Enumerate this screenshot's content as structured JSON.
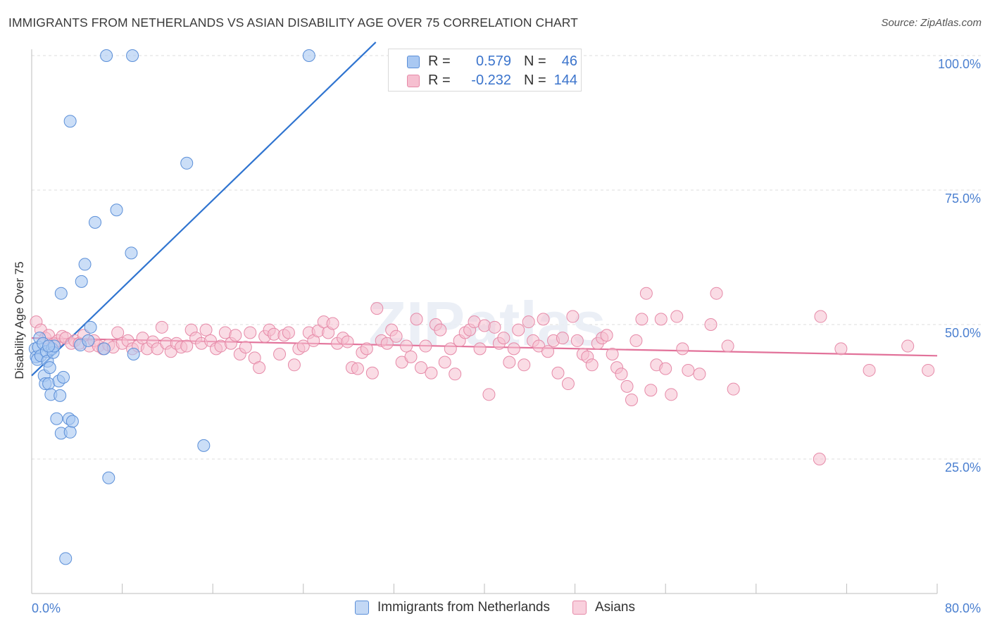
{
  "title": "IMMIGRANTS FROM NETHERLANDS VS ASIAN DISABILITY AGE OVER 75 CORRELATION CHART",
  "source": "Source: ZipAtlas.com",
  "colors": {
    "blue_fill": "#a9c8f2",
    "blue_stroke": "#5b8fd8",
    "blue_line": "#2f74d0",
    "pink_fill": "#f6bfd0",
    "pink_stroke": "#e68aa8",
    "pink_line": "#e2729a",
    "grid": "#dcdcdc",
    "tick_text": "#4a7fd0"
  },
  "legend_top": {
    "rows": [
      {
        "r_label": "R =",
        "r_value": "0.579",
        "n_label": "N =",
        "n_value": "46"
      },
      {
        "r_label": "R =",
        "r_value": "-0.232",
        "n_label": "N =",
        "n_value": "144"
      }
    ]
  },
  "chart_data": {
    "type": "scatter",
    "title": "IMMIGRANTS FROM NETHERLANDS VS ASIAN DISABILITY AGE OVER 75 CORRELATION CHART",
    "xlabel": "",
    "ylabel": "Disability Age Over 75",
    "xlim": [
      0,
      80
    ],
    "ylim": [
      0,
      105
    ],
    "x_ticks": [
      {
        "value": 0,
        "label": "0.0%"
      },
      {
        "value": 80,
        "label": "80.0%"
      }
    ],
    "y_ticks": [
      {
        "value": 25,
        "label": "25.0%"
      },
      {
        "value": 50,
        "label": "50.0%"
      },
      {
        "value": 75,
        "label": "75.0%"
      },
      {
        "value": 100,
        "label": "100.0%"
      }
    ],
    "watermark": "ZIPatlas",
    "legend_position": "top-center",
    "series": [
      {
        "name": "Immigrants from Netherlands",
        "R": 0.579,
        "N": 46,
        "trend": {
          "x0": 0.0,
          "y0": 40.5,
          "x1": 30.4,
          "y1": 102.5
        },
        "points": [
          [
            0.3,
            45.5
          ],
          [
            0.4,
            44.0
          ],
          [
            0.5,
            43.5
          ],
          [
            0.6,
            45.8
          ],
          [
            0.7,
            47.5
          ],
          [
            0.8,
            44.2
          ],
          [
            1.0,
            46.5
          ],
          [
            1.1,
            40.5
          ],
          [
            1.2,
            39.0
          ],
          [
            1.3,
            45.0
          ],
          [
            1.4,
            43.2
          ],
          [
            1.5,
            39.0
          ],
          [
            1.6,
            42.0
          ],
          [
            1.7,
            37.0
          ],
          [
            1.8,
            45.5
          ],
          [
            1.9,
            44.8
          ],
          [
            2.0,
            46.0
          ],
          [
            2.2,
            32.5
          ],
          [
            2.4,
            39.5
          ],
          [
            2.5,
            36.8
          ],
          [
            2.6,
            29.8
          ],
          [
            2.8,
            40.2
          ],
          [
            3.0,
            6.5
          ],
          [
            3.3,
            32.5
          ],
          [
            3.4,
            30.0
          ],
          [
            3.6,
            32.0
          ],
          [
            2.6,
            55.8
          ],
          [
            3.4,
            87.8
          ],
          [
            4.4,
            58.0
          ],
          [
            4.7,
            61.2
          ],
          [
            5.2,
            49.5
          ],
          [
            5.6,
            69.0
          ],
          [
            6.8,
            21.5
          ],
          [
            7.5,
            71.3
          ],
          [
            8.8,
            63.3
          ],
          [
            9.0,
            44.5
          ],
          [
            6.6,
            100.0
          ],
          [
            8.9,
            100.0
          ],
          [
            13.7,
            80.0
          ],
          [
            15.2,
            27.5
          ],
          [
            24.5,
            100.0
          ],
          [
            33.0,
            100.0
          ],
          [
            4.3,
            46.2
          ],
          [
            5.0,
            47.0
          ],
          [
            6.4,
            45.5
          ],
          [
            1.5,
            46.0
          ]
        ]
      },
      {
        "name": "Asians",
        "R": -0.232,
        "N": 144,
        "trend": {
          "x0": 0.0,
          "y0": 47.5,
          "x1": 80.0,
          "y1": 44.2
        },
        "points": [
          [
            0.4,
            50.5
          ],
          [
            0.8,
            49.0
          ],
          [
            1.2,
            47.5
          ],
          [
            1.5,
            48.0
          ],
          [
            2.0,
            46.5
          ],
          [
            2.3,
            47.0
          ],
          [
            2.7,
            47.8
          ],
          [
            3.0,
            47.5
          ],
          [
            3.5,
            46.5
          ],
          [
            3.8,
            47.0
          ],
          [
            4.2,
            46.5
          ],
          [
            4.6,
            48.0
          ],
          [
            5.1,
            46.0
          ],
          [
            5.5,
            47.0
          ],
          [
            5.9,
            46.0
          ],
          [
            6.3,
            45.5
          ],
          [
            6.8,
            46.2
          ],
          [
            7.2,
            45.8
          ],
          [
            7.6,
            48.5
          ],
          [
            8.0,
            46.5
          ],
          [
            8.5,
            47.0
          ],
          [
            8.9,
            45.5
          ],
          [
            9.4,
            46.0
          ],
          [
            9.8,
            47.5
          ],
          [
            10.2,
            45.5
          ],
          [
            10.7,
            46.8
          ],
          [
            11.1,
            45.5
          ],
          [
            11.5,
            49.5
          ],
          [
            11.9,
            46.5
          ],
          [
            12.3,
            45.0
          ],
          [
            12.8,
            46.5
          ],
          [
            13.2,
            45.8
          ],
          [
            13.7,
            46.0
          ],
          [
            14.1,
            49.0
          ],
          [
            14.5,
            47.5
          ],
          [
            15.0,
            46.5
          ],
          [
            15.4,
            49.0
          ],
          [
            15.8,
            47.0
          ],
          [
            16.3,
            45.5
          ],
          [
            16.7,
            46.0
          ],
          [
            17.1,
            48.5
          ],
          [
            17.6,
            46.5
          ],
          [
            18.0,
            48.0
          ],
          [
            18.4,
            44.5
          ],
          [
            18.9,
            45.8
          ],
          [
            19.3,
            48.5
          ],
          [
            19.7,
            43.8
          ],
          [
            20.1,
            42.0
          ],
          [
            20.6,
            47.8
          ],
          [
            21.0,
            49.0
          ],
          [
            21.4,
            48.2
          ],
          [
            21.9,
            44.5
          ],
          [
            22.3,
            48.0
          ],
          [
            22.7,
            48.5
          ],
          [
            23.2,
            42.5
          ],
          [
            23.6,
            45.5
          ],
          [
            24.0,
            46.0
          ],
          [
            24.5,
            48.5
          ],
          [
            24.9,
            47.0
          ],
          [
            25.3,
            48.8
          ],
          [
            25.8,
            50.5
          ],
          [
            26.2,
            48.5
          ],
          [
            26.6,
            50.2
          ],
          [
            27.0,
            46.5
          ],
          [
            27.5,
            47.5
          ],
          [
            27.9,
            46.8
          ],
          [
            28.3,
            42.0
          ],
          [
            28.8,
            41.8
          ],
          [
            29.2,
            44.8
          ],
          [
            29.6,
            45.5
          ],
          [
            30.1,
            41.0
          ],
          [
            30.5,
            53.0
          ],
          [
            30.9,
            47.0
          ],
          [
            31.4,
            46.5
          ],
          [
            31.8,
            49.0
          ],
          [
            32.2,
            47.8
          ],
          [
            32.7,
            43.0
          ],
          [
            33.1,
            46.0
          ],
          [
            33.5,
            44.0
          ],
          [
            34.0,
            51.0
          ],
          [
            34.4,
            42.0
          ],
          [
            34.8,
            46.0
          ],
          [
            35.3,
            41.0
          ],
          [
            35.7,
            50.0
          ],
          [
            36.1,
            49.0
          ],
          [
            36.5,
            43.0
          ],
          [
            37.0,
            45.5
          ],
          [
            37.4,
            40.8
          ],
          [
            37.8,
            47.0
          ],
          [
            38.3,
            48.5
          ],
          [
            38.7,
            49.0
          ],
          [
            39.1,
            50.5
          ],
          [
            39.6,
            45.5
          ],
          [
            40.0,
            49.8
          ],
          [
            40.4,
            37.0
          ],
          [
            40.9,
            49.5
          ],
          [
            41.3,
            46.5
          ],
          [
            41.7,
            47.5
          ],
          [
            42.2,
            43.0
          ],
          [
            42.6,
            45.5
          ],
          [
            43.0,
            49.0
          ],
          [
            43.5,
            42.5
          ],
          [
            43.9,
            50.5
          ],
          [
            44.3,
            47.0
          ],
          [
            44.8,
            46.0
          ],
          [
            45.2,
            51.0
          ],
          [
            45.6,
            45.0
          ],
          [
            46.1,
            47.0
          ],
          [
            46.5,
            41.0
          ],
          [
            46.9,
            47.5
          ],
          [
            47.4,
            39.0
          ],
          [
            47.8,
            51.5
          ],
          [
            48.2,
            47.0
          ],
          [
            48.7,
            44.5
          ],
          [
            49.1,
            44.0
          ],
          [
            49.5,
            42.5
          ],
          [
            50.0,
            46.5
          ],
          [
            50.4,
            47.5
          ],
          [
            50.8,
            48.0
          ],
          [
            51.3,
            44.5
          ],
          [
            51.7,
            42.0
          ],
          [
            52.1,
            40.8
          ],
          [
            52.6,
            38.5
          ],
          [
            53.0,
            36.0
          ],
          [
            53.4,
            47.0
          ],
          [
            53.9,
            51.0
          ],
          [
            54.3,
            55.8
          ],
          [
            54.7,
            37.8
          ],
          [
            55.2,
            42.5
          ],
          [
            55.6,
            51.0
          ],
          [
            56.0,
            41.8
          ],
          [
            56.5,
            37.0
          ],
          [
            57.0,
            51.5
          ],
          [
            57.5,
            45.5
          ],
          [
            58.0,
            41.5
          ],
          [
            59.0,
            40.8
          ],
          [
            60.0,
            50.0
          ],
          [
            69.7,
            51.5
          ],
          [
            60.5,
            55.8
          ],
          [
            61.5,
            46.0
          ],
          [
            62.0,
            38.0
          ],
          [
            69.6,
            25.0
          ],
          [
            71.5,
            45.5
          ],
          [
            74.0,
            41.5
          ],
          [
            79.2,
            41.5
          ],
          [
            77.4,
            46.0
          ]
        ]
      }
    ]
  }
}
